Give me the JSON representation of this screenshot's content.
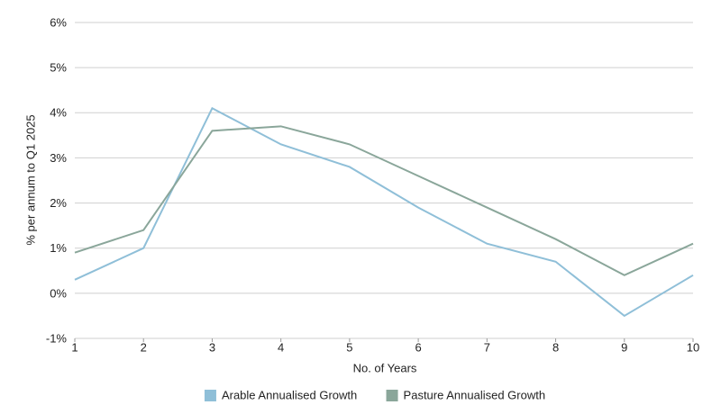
{
  "chart_data": {
    "type": "line",
    "x_label": "No. of Years",
    "y_label": "% per annum to Q1 2025",
    "x": [
      1,
      2,
      3,
      4,
      5,
      6,
      7,
      8,
      9,
      10
    ],
    "xlim": [
      1,
      10
    ],
    "xticks": [
      1,
      2,
      3,
      4,
      5,
      6,
      7,
      8,
      9,
      10
    ],
    "ylim": [
      -1,
      6
    ],
    "yticks": [
      {
        "value": -1,
        "label": "-1%"
      },
      {
        "value": 0,
        "label": "0%"
      },
      {
        "value": 1,
        "label": "1%"
      },
      {
        "value": 2,
        "label": "2%"
      },
      {
        "value": 3,
        "label": "3%"
      },
      {
        "value": 4,
        "label": "4%"
      },
      {
        "value": 5,
        "label": "5%"
      },
      {
        "value": 6,
        "label": "6%"
      }
    ],
    "grid": true,
    "legend": "bottom",
    "series": [
      {
        "name": "Arable Annualised Growth",
        "color": "#8fbfd8",
        "values": [
          0.3,
          1.0,
          4.1,
          3.3,
          2.8,
          1.9,
          1.1,
          0.7,
          -0.5,
          0.4
        ]
      },
      {
        "name": "Pasture Annualised Growth",
        "color": "#8aa69a",
        "values": [
          0.9,
          1.4,
          3.6,
          3.7,
          3.3,
          2.6,
          1.9,
          1.2,
          0.4,
          1.1
        ]
      }
    ]
  }
}
